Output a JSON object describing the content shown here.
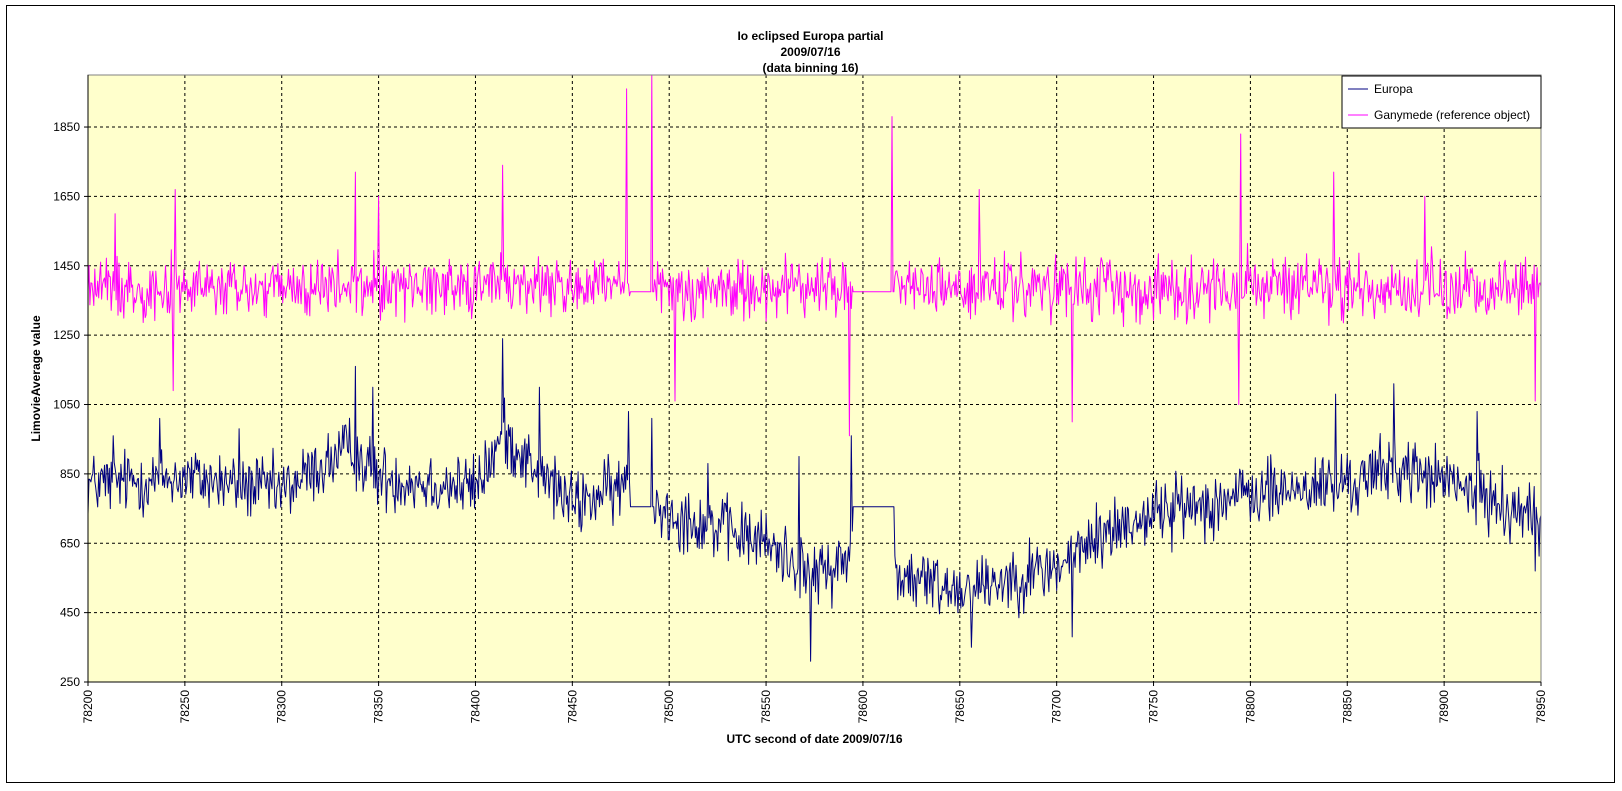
{
  "colors": {
    "plot_background": "#ffffcc",
    "europa": "#000080",
    "ganymede": "#ff00ff",
    "grid": "#000000"
  },
  "chart_data": {
    "type": "line",
    "title_lines": [
      "Io eclipsed Europa partial",
      "2009/07/16",
      "(data binning 16)"
    ],
    "xlabel": "UTC second of date 2009/07/16",
    "ylabel": "LimovieAverage value",
    "xlim": [
      78200,
      78950
    ],
    "ylim": [
      250,
      2000
    ],
    "xticks": [
      78200,
      78250,
      78300,
      78350,
      78400,
      78450,
      78500,
      78550,
      78600,
      78650,
      78700,
      78750,
      78800,
      78850,
      78900,
      78950
    ],
    "yticks": [
      250,
      450,
      650,
      850,
      1050,
      1250,
      1450,
      1650,
      1850
    ],
    "grid": true,
    "legend_position": "top-right",
    "series": [
      {
        "name": "Europa",
        "color": "#000080",
        "approx_profile": [
          [
            78200,
            820
          ],
          [
            78250,
            840
          ],
          [
            78300,
            800
          ],
          [
            78335,
            920
          ],
          [
            78350,
            840
          ],
          [
            78400,
            810
          ],
          [
            78415,
            960
          ],
          [
            78450,
            760
          ],
          [
            78480,
            820
          ],
          [
            78500,
            740
          ],
          [
            78550,
            650
          ],
          [
            78575,
            560
          ],
          [
            78592,
            600
          ],
          [
            78600,
            760
          ],
          [
            78620,
            550
          ],
          [
            78650,
            520
          ],
          [
            78700,
            580
          ],
          [
            78725,
            680
          ],
          [
            78750,
            740
          ],
          [
            78800,
            790
          ],
          [
            78850,
            820
          ],
          [
            78875,
            870
          ],
          [
            78900,
            830
          ],
          [
            78950,
            720
          ]
        ],
        "noise_amplitude": 140,
        "spikes": [
          [
            78213,
            960
          ],
          [
            78237,
            1010
          ],
          [
            78278,
            980
          ],
          [
            78338,
            1160
          ],
          [
            78347,
            1100
          ],
          [
            78414,
            1240
          ],
          [
            78433,
            1100
          ],
          [
            78479,
            1030
          ],
          [
            78491,
            1010
          ],
          [
            78520,
            880
          ],
          [
            78567,
            900
          ],
          [
            78573,
            310
          ],
          [
            78594,
            960
          ],
          [
            78656,
            350
          ],
          [
            78708,
            380
          ],
          [
            78844,
            1080
          ],
          [
            78874,
            1110
          ],
          [
            78917,
            1030
          ],
          [
            78947,
            570
          ]
        ],
        "flat_segments": [
          [
            78480,
            78492,
            755
          ],
          [
            78595,
            78616,
            755
          ]
        ]
      },
      {
        "name": "Ganymede (reference object)",
        "color": "#ff00ff",
        "approx_profile": [
          [
            78200,
            1390
          ],
          [
            78300,
            1380
          ],
          [
            78400,
            1400
          ],
          [
            78500,
            1380
          ],
          [
            78600,
            1390
          ],
          [
            78700,
            1380
          ],
          [
            78800,
            1390
          ],
          [
            78900,
            1380
          ],
          [
            78950,
            1390
          ]
        ],
        "noise_amplitude": 130,
        "spikes": [
          [
            78214,
            1600
          ],
          [
            78245,
            1670
          ],
          [
            78244,
            1090
          ],
          [
            78338,
            1720
          ],
          [
            78350,
            1650
          ],
          [
            78414,
            1740
          ],
          [
            78478,
            1960
          ],
          [
            78491,
            2000
          ],
          [
            78503,
            1060
          ],
          [
            78593,
            960
          ],
          [
            78615,
            1880
          ],
          [
            78660,
            1670
          ],
          [
            78708,
            1000
          ],
          [
            78795,
            1830
          ],
          [
            78794,
            1050
          ],
          [
            78843,
            1720
          ],
          [
            78890,
            1650
          ],
          [
            78947,
            1060
          ]
        ],
        "flat_segments": [
          [
            78480,
            78492,
            1375
          ],
          [
            78595,
            78616,
            1375
          ]
        ]
      }
    ]
  }
}
